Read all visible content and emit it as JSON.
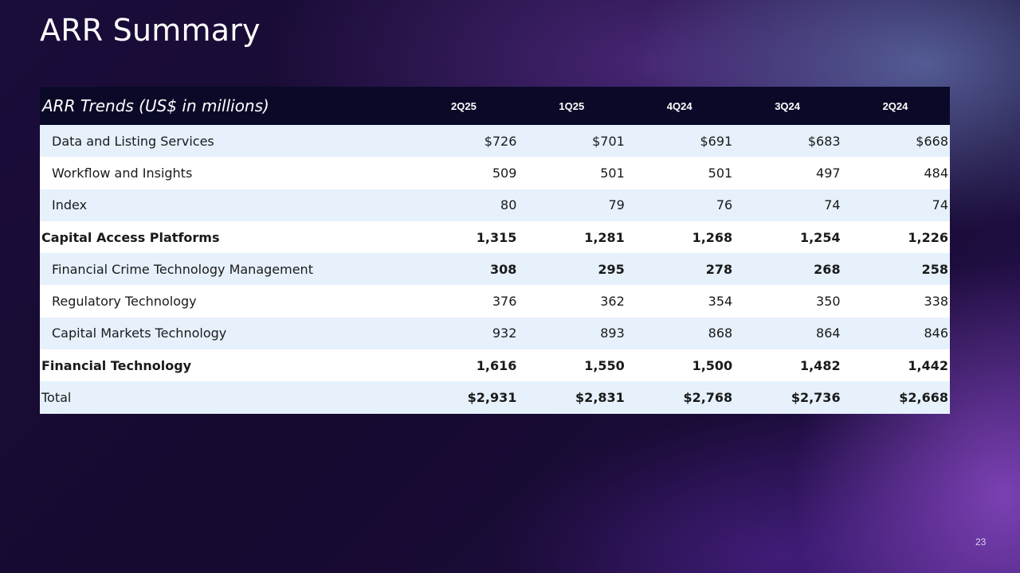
{
  "slide": {
    "title": "ARR Summary",
    "page_number": "23"
  },
  "table": {
    "title": "ARR Trends (US$ in millions)",
    "columns": [
      "2Q25",
      "1Q25",
      "4Q24",
      "3Q24",
      "2Q24"
    ],
    "rows": [
      {
        "label": "Data and Listing Services",
        "values": [
          "$726",
          "$701",
          "$691",
          "$683",
          "$668"
        ]
      },
      {
        "label": "Workflow and Insights",
        "values": [
          "509",
          "501",
          "501",
          "497",
          "484"
        ]
      },
      {
        "label": "Index",
        "values": [
          "80",
          "79",
          "76",
          "74",
          "74"
        ]
      },
      {
        "label": "Capital Access Platforms",
        "values": [
          "1,315",
          "1,281",
          "1,268",
          "1,254",
          "1,226"
        ]
      },
      {
        "label": "Financial Crime Technology Management",
        "values": [
          "308",
          "295",
          "278",
          "268",
          "258"
        ]
      },
      {
        "label": "Regulatory Technology",
        "values": [
          "376",
          "362",
          "354",
          "350",
          "338"
        ]
      },
      {
        "label": "Capital Markets Technology",
        "values": [
          "932",
          "893",
          "868",
          "864",
          "846"
        ]
      },
      {
        "label": "Financial Technology",
        "values": [
          "1,616",
          "1,550",
          "1,500",
          "1,482",
          "1,442"
        ]
      },
      {
        "label": "Total",
        "values": [
          "$2,931",
          "$2,831",
          "$2,768",
          "$2,736",
          "$2,668"
        ]
      }
    ]
  }
}
